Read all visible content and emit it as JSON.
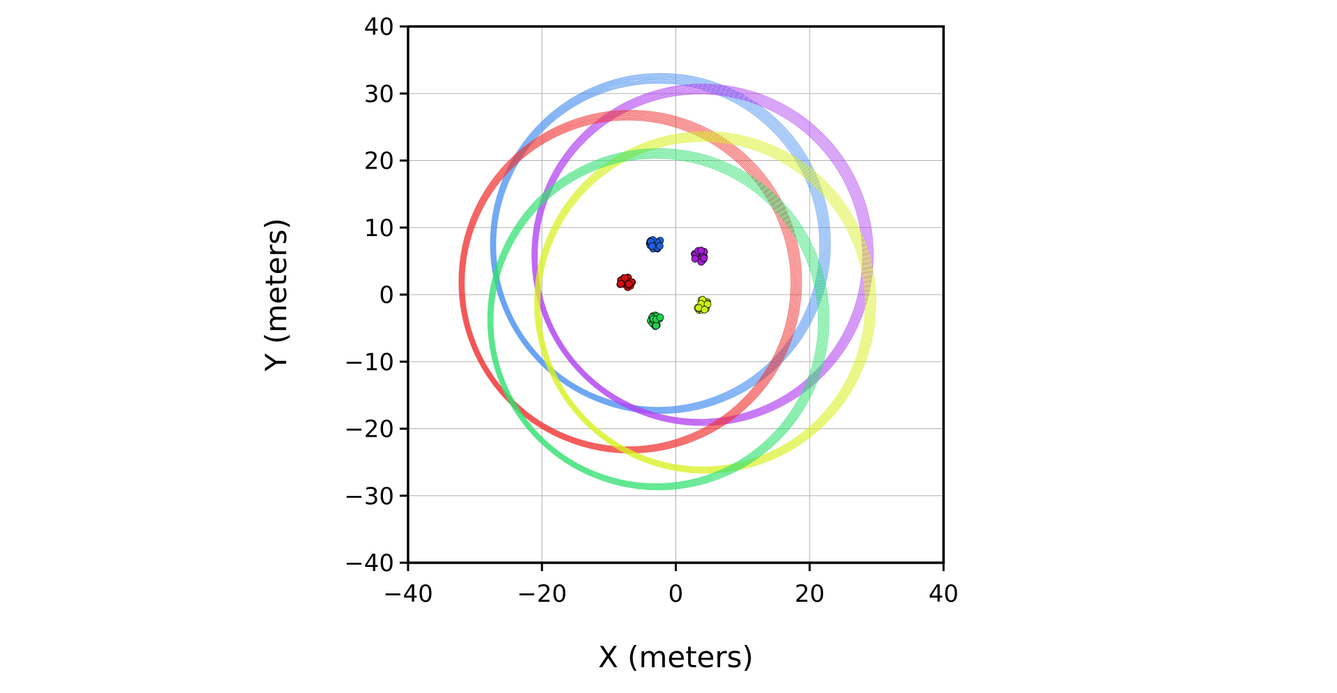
{
  "chart_data": {
    "type": "scatter",
    "title": "",
    "xlabel": "X (meters)",
    "ylabel": "Y (meters)",
    "xlim": [
      -40,
      40
    ],
    "ylim": [
      -40,
      40
    ],
    "grid": true,
    "x_ticks": [
      -40,
      -20,
      0,
      20,
      40
    ],
    "y_ticks": [
      40,
      30,
      20,
      10,
      0,
      -10,
      -20,
      -30,
      -40
    ],
    "x_tick_labels": [
      "−40",
      "−20",
      "0",
      "20",
      "40"
    ],
    "y_tick_labels": [
      "40",
      "30",
      "20",
      "10",
      "0",
      "−10",
      "−20",
      "−30",
      "−40"
    ],
    "series": [
      {
        "color": "#2060e0",
        "ring_color": "#4a90f0",
        "ring_center": [
          -2.5,
          7.5
        ],
        "ring_radius": 24.8,
        "cluster_center": [
          -3.2,
          7.7
        ]
      },
      {
        "color": "#a020d0",
        "ring_color": "#b040f0",
        "ring_center": [
          3.8,
          5.8
        ],
        "ring_radius": 24.9,
        "cluster_center": [
          3.6,
          5.7
        ]
      },
      {
        "color": "#d01010",
        "ring_color": "#f03030",
        "ring_center": [
          -7.0,
          1.8
        ],
        "ring_radius": 25.0,
        "cluster_center": [
          -7.4,
          1.7
        ]
      },
      {
        "color": "#ccee10",
        "ring_color": "#d8f020",
        "ring_center": [
          4.2,
          -1.3
        ],
        "ring_radius": 24.9,
        "cluster_center": [
          4.0,
          -1.5
        ]
      },
      {
        "color": "#20d050",
        "ring_color": "#30e070",
        "ring_center": [
          -2.8,
          -3.8
        ],
        "ring_radius": 24.9,
        "cluster_center": [
          -2.9,
          -3.9
        ]
      }
    ]
  }
}
